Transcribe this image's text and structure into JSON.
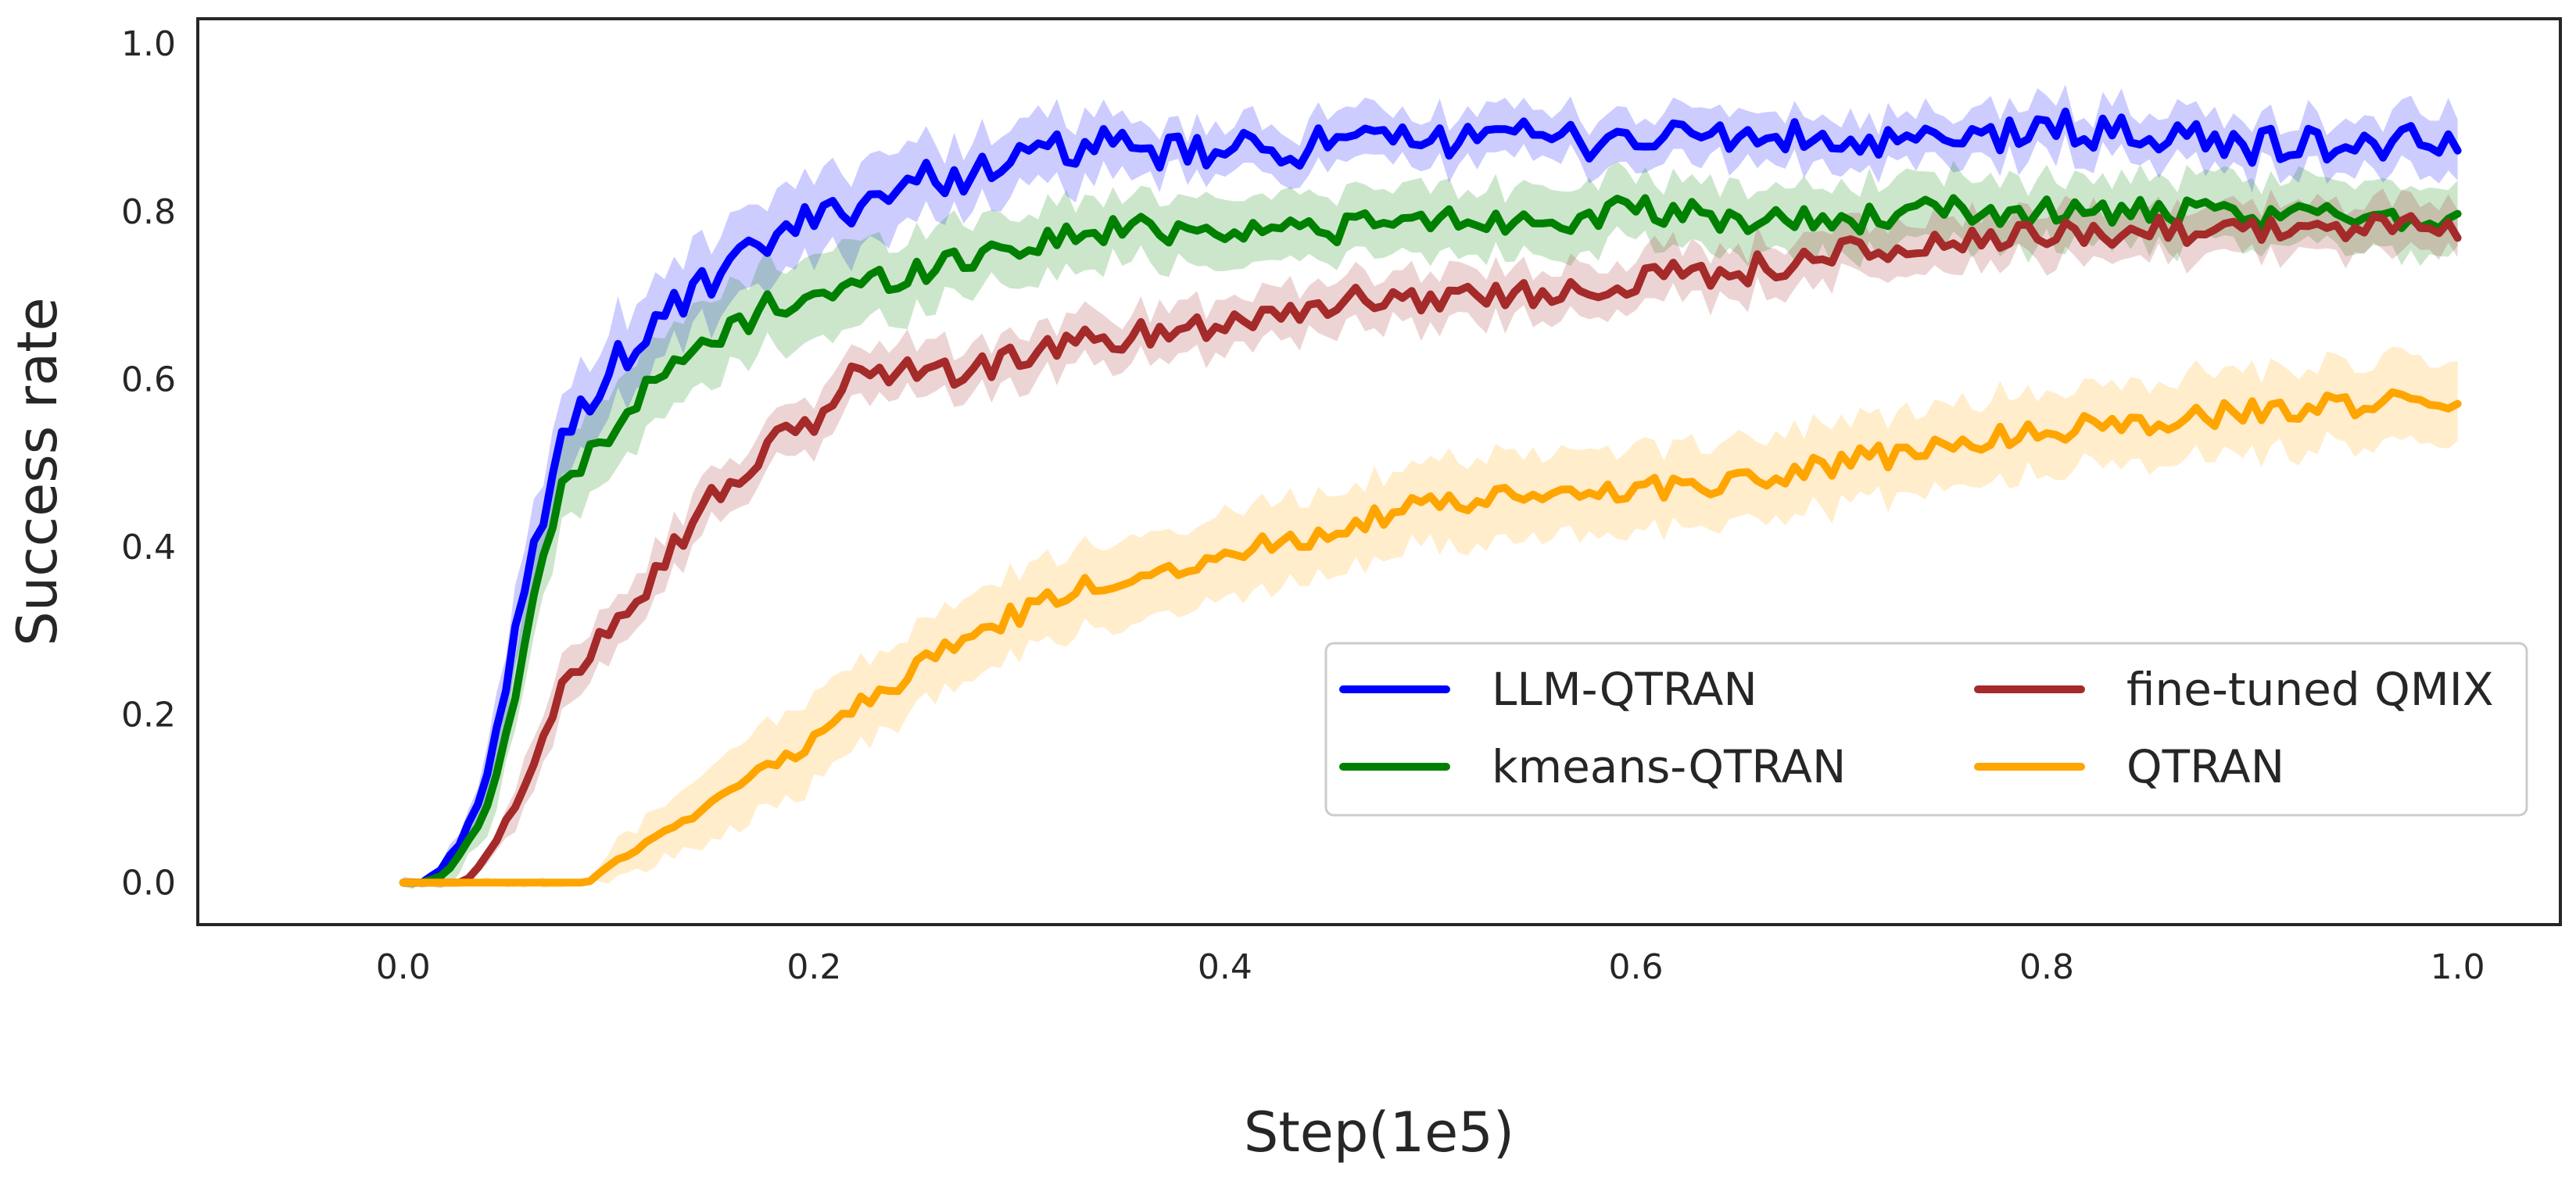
{
  "chart_data": {
    "type": "line",
    "title": "",
    "xlabel": "Step(1e5)",
    "ylabel": "Success rate",
    "xlim": [
      -0.1,
      1.05
    ],
    "ylim": [
      -0.05,
      1.03
    ],
    "xticks": [
      0.0,
      0.2,
      0.4,
      0.6,
      0.8,
      1.0
    ],
    "xtick_labels": [
      "0.0",
      "0.2",
      "0.4",
      "0.6",
      "0.8",
      "1.0"
    ],
    "yticks": [
      0.0,
      0.2,
      0.4,
      0.6,
      0.8,
      1.0
    ],
    "ytick_labels": [
      "0.0",
      "0.2",
      "0.4",
      "0.6",
      "0.8",
      "1.0"
    ],
    "grid": false,
    "legend": {
      "position": "lower-right",
      "columns": 2,
      "order": [
        "LLM-QTRAN",
        "kmeans-QTRAN",
        "fine-tuned QMIX",
        "QTRAN"
      ]
    },
    "band": "shaded band around each line (approx. ±1 std)",
    "series": [
      {
        "name": "LLM-QTRAN",
        "color": "#0000ff",
        "x": [
          0.0,
          0.01,
          0.02,
          0.03,
          0.04,
          0.05,
          0.06,
          0.07,
          0.08,
          0.09,
          0.1,
          0.12,
          0.14,
          0.16,
          0.18,
          0.2,
          0.22,
          0.24,
          0.26,
          0.28,
          0.3,
          0.33,
          0.36,
          0.4,
          0.45,
          0.5,
          0.53,
          0.55,
          0.6,
          0.65,
          0.7,
          0.75,
          0.8,
          0.85,
          0.9,
          0.95,
          1.0
        ],
        "y": [
          0.0,
          0.0,
          0.02,
          0.06,
          0.12,
          0.22,
          0.36,
          0.46,
          0.54,
          0.58,
          0.61,
          0.66,
          0.7,
          0.73,
          0.77,
          0.79,
          0.81,
          0.83,
          0.84,
          0.85,
          0.86,
          0.88,
          0.87,
          0.87,
          0.88,
          0.88,
          0.91,
          0.88,
          0.89,
          0.89,
          0.88,
          0.88,
          0.9,
          0.89,
          0.88,
          0.88,
          0.88
        ],
        "band": [
          0.0,
          0.0,
          0.01,
          0.02,
          0.03,
          0.04,
          0.05,
          0.05,
          0.05,
          0.05,
          0.05,
          0.05,
          0.05,
          0.05,
          0.05,
          0.05,
          0.05,
          0.05,
          0.04,
          0.04,
          0.04,
          0.04,
          0.03,
          0.03,
          0.03,
          0.03,
          0.03,
          0.03,
          0.03,
          0.03,
          0.03,
          0.03,
          0.03,
          0.03,
          0.03,
          0.03,
          0.04
        ]
      },
      {
        "name": "kmeans-QTRAN",
        "color": "#008000",
        "x": [
          0.0,
          0.01,
          0.02,
          0.03,
          0.04,
          0.05,
          0.06,
          0.07,
          0.08,
          0.09,
          0.1,
          0.12,
          0.14,
          0.16,
          0.18,
          0.2,
          0.22,
          0.25,
          0.28,
          0.3,
          0.35,
          0.4,
          0.45,
          0.5,
          0.55,
          0.6,
          0.65,
          0.7,
          0.75,
          0.8,
          0.85,
          0.9,
          0.95,
          1.0
        ],
        "y": [
          0.0,
          0.0,
          0.01,
          0.04,
          0.09,
          0.17,
          0.3,
          0.41,
          0.48,
          0.51,
          0.54,
          0.59,
          0.63,
          0.66,
          0.69,
          0.7,
          0.71,
          0.73,
          0.75,
          0.76,
          0.78,
          0.78,
          0.78,
          0.79,
          0.79,
          0.8,
          0.79,
          0.79,
          0.8,
          0.8,
          0.8,
          0.79,
          0.8,
          0.79
        ],
        "band": [
          0.0,
          0.0,
          0.01,
          0.02,
          0.03,
          0.04,
          0.05,
          0.05,
          0.05,
          0.05,
          0.05,
          0.05,
          0.05,
          0.05,
          0.05,
          0.05,
          0.05,
          0.05,
          0.04,
          0.04,
          0.04,
          0.04,
          0.04,
          0.04,
          0.04,
          0.04,
          0.04,
          0.04,
          0.04,
          0.04,
          0.04,
          0.04,
          0.04,
          0.04
        ]
      },
      {
        "name": "fine-tuned QMIX",
        "color": "#a52a2a",
        "x": [
          0.0,
          0.03,
          0.04,
          0.05,
          0.06,
          0.07,
          0.08,
          0.09,
          0.1,
          0.12,
          0.14,
          0.16,
          0.18,
          0.2,
          0.22,
          0.25,
          0.28,
          0.3,
          0.35,
          0.4,
          0.45,
          0.5,
          0.55,
          0.6,
          0.65,
          0.7,
          0.75,
          0.8,
          0.85,
          0.9,
          0.95,
          1.0
        ],
        "y": [
          0.0,
          0.0,
          0.03,
          0.07,
          0.12,
          0.18,
          0.24,
          0.28,
          0.31,
          0.36,
          0.43,
          0.48,
          0.52,
          0.55,
          0.61,
          0.61,
          0.61,
          0.63,
          0.65,
          0.67,
          0.69,
          0.7,
          0.7,
          0.72,
          0.73,
          0.75,
          0.76,
          0.77,
          0.78,
          0.78,
          0.78,
          0.78
        ],
        "band": [
          0.0,
          0.0,
          0.01,
          0.02,
          0.03,
          0.03,
          0.03,
          0.03,
          0.03,
          0.03,
          0.03,
          0.03,
          0.03,
          0.03,
          0.03,
          0.03,
          0.03,
          0.03,
          0.03,
          0.03,
          0.03,
          0.03,
          0.03,
          0.03,
          0.03,
          0.03,
          0.03,
          0.03,
          0.03,
          0.03,
          0.03,
          0.03
        ]
      },
      {
        "name": "QTRAN",
        "color": "#ffa500",
        "x": [
          0.0,
          0.09,
          0.1,
          0.12,
          0.14,
          0.16,
          0.18,
          0.2,
          0.22,
          0.24,
          0.26,
          0.28,
          0.3,
          0.33,
          0.36,
          0.4,
          0.45,
          0.5,
          0.55,
          0.6,
          0.65,
          0.7,
          0.75,
          0.8,
          0.85,
          0.9,
          0.95,
          1.0
        ],
        "y": [
          0.0,
          0.0,
          0.02,
          0.05,
          0.08,
          0.11,
          0.14,
          0.17,
          0.21,
          0.24,
          0.27,
          0.3,
          0.32,
          0.35,
          0.37,
          0.39,
          0.42,
          0.45,
          0.46,
          0.47,
          0.48,
          0.5,
          0.52,
          0.54,
          0.55,
          0.56,
          0.57,
          0.58
        ],
        "band": [
          0.0,
          0.0,
          0.02,
          0.03,
          0.04,
          0.05,
          0.05,
          0.05,
          0.05,
          0.05,
          0.05,
          0.05,
          0.05,
          0.05,
          0.05,
          0.05,
          0.05,
          0.05,
          0.05,
          0.05,
          0.05,
          0.05,
          0.05,
          0.05,
          0.05,
          0.05,
          0.05,
          0.05
        ]
      }
    ]
  }
}
